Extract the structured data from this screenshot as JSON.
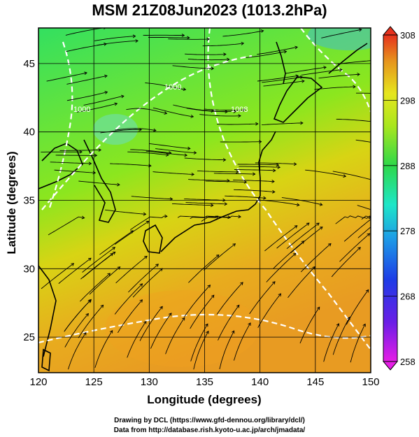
{
  "title": "MSM 21Z08Jun2023 (1013.2hPa)",
  "xlabel": "Longitude (degrees)",
  "ylabel": "Latitude  (degrees)",
  "x_ticks": [
    "120",
    "125",
    "130",
    "135",
    "140",
    "145",
    "150"
  ],
  "y_ticks": [
    "25",
    "30",
    "35",
    "40",
    "45"
  ],
  "colorbar_ticks": [
    "308",
    "298",
    "288",
    "278",
    "268",
    "258"
  ],
  "contour_labels": [
    "1000",
    "1000",
    "1008"
  ],
  "credits": {
    "line1": "Drawing by DCL (https://www.gfd-dennou.org/library/dcl/)",
    "line2": "Data from http://database.rish.kyoto-u.ac.jp/arch/jmadata/"
  },
  "colors": {
    "streamline": "#000000",
    "contour": "#ffffff",
    "grid": "#000000"
  },
  "chart_data": {
    "type": "heatmap",
    "title": "MSM 21Z08Jun2023 (1013.2hPa)",
    "xlabel": "Longitude (degrees)",
    "ylabel": "Latitude  (degrees)",
    "xlim": [
      120,
      150
    ],
    "ylim": [
      22.4,
      47.6
    ],
    "x_ticks": [
      120,
      125,
      130,
      135,
      140,
      145,
      150
    ],
    "y_ticks": [
      25,
      30,
      35,
      40,
      45
    ],
    "colorbar": {
      "min": 258,
      "max": 308,
      "ticks": [
        258,
        268,
        278,
        288,
        298,
        308
      ]
    },
    "grid": true
  }
}
